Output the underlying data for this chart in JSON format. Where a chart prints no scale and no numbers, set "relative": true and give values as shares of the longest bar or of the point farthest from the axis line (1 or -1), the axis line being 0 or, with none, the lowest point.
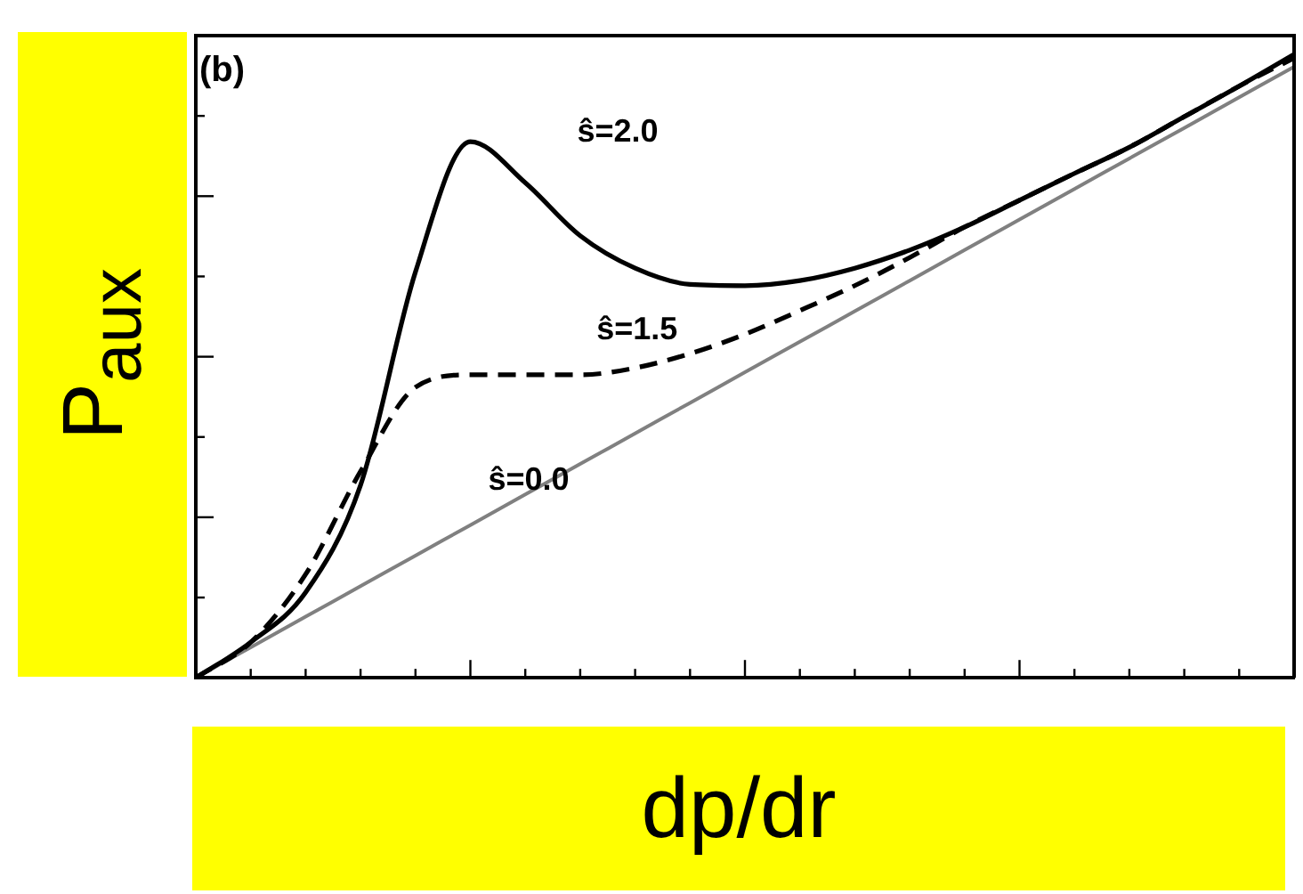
{
  "chart_data": {
    "type": "line",
    "relative": true,
    "xlabel": "dp/dr",
    "ylabel": "P$_{aux}$",
    "annotations": [
      "(b)"
    ],
    "legend": false,
    "marker": "none",
    "categories": [
      null,
      null,
      null,
      null,
      null,
      null,
      null,
      null,
      null,
      null,
      null,
      null,
      null,
      null,
      null,
      null,
      null,
      null,
      null,
      null,
      null
    ],
    "series": [
      {
        "name": "ŝ=2.0",
        "color": "#000000",
        "line_style": "solid",
        "values": [
          0,
          0.057,
          0.137,
          0.309,
          0.651,
          0.86,
          0.794,
          0.709,
          0.657,
          0.631,
          0.629,
          0.637,
          0.657,
          0.686,
          0.723,
          0.766,
          0.809,
          0.851,
          0.9,
          0.949,
          1
        ]
      },
      {
        "name": "ŝ=1.5",
        "color": "#000000",
        "line_style": "dashed",
        "values": [
          0,
          0.057,
          0.166,
          0.331,
          0.466,
          0.486,
          0.486,
          0.486,
          0.497,
          0.52,
          0.551,
          0.589,
          0.629,
          0.674,
          0.723,
          0.766,
          0.809,
          0.851,
          0.9,
          0.949,
          0.994
        ]
      },
      {
        "name": "ŝ=0.0",
        "color": "#808080",
        "line_style": "solid",
        "values": [
          0,
          0.049,
          0.098,
          0.147,
          0.196,
          0.245,
          0.294,
          0.343,
          0.392,
          0.441,
          0.49,
          0.539,
          0.588,
          0.637,
          0.686,
          0.735,
          0.784,
          0.833,
          0.882,
          0.931,
          0.98
        ]
      }
    ]
  }
}
